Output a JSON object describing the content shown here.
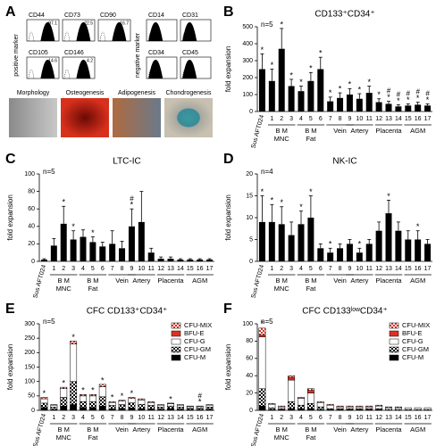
{
  "panel_a": {
    "letter": "A",
    "positive_label": "positive marker",
    "negative_label": "negative marker",
    "positive_markers": [
      {
        "name": "CD44",
        "value": "97.1"
      },
      {
        "name": "CD73",
        "value": "22.5"
      },
      {
        "name": "CD90",
        "value": "16.7"
      },
      {
        "name": "CD105",
        "value": "14.6"
      },
      {
        "name": "CD146",
        "value": "4.2"
      }
    ],
    "negative_markers": [
      "CD14",
      "CD31",
      "CD34",
      "CD45"
    ],
    "images": [
      "Morphology",
      "Osteogenesis",
      "Adipogenesis",
      "Chondrogenesis"
    ]
  },
  "chart_data": [
    {
      "type": "bar",
      "panel": "B",
      "title": "CD133⁺CD34⁺",
      "n": "n=5",
      "ylabel": "fold expansion",
      "color": "#000000",
      "categories": [
        "Sus AFT024",
        "1",
        "2",
        "3",
        "4",
        "5",
        "6",
        "7",
        "8",
        "9",
        "10",
        "11",
        "12",
        "13",
        "14",
        "15",
        "16",
        "17"
      ],
      "group_labels": [
        null,
        null,
        "B M",
        null,
        null,
        "B M",
        null,
        null,
        "Vein",
        null,
        "Artery",
        null,
        null,
        "Placenta",
        null,
        null,
        "AGM",
        null
      ],
      "group_sublabels": [
        null,
        null,
        "MNC",
        null,
        null,
        "Fat",
        null,
        null,
        null,
        null,
        null,
        null,
        null,
        null,
        null,
        null,
        null,
        null
      ],
      "values": [
        250,
        180,
        370,
        150,
        120,
        180,
        250,
        60,
        80,
        100,
        75,
        110,
        55,
        45,
        30,
        35,
        40,
        35
      ],
      "errors": [
        90,
        70,
        120,
        40,
        30,
        50,
        70,
        25,
        30,
        35,
        30,
        40,
        20,
        15,
        10,
        10,
        15,
        10
      ],
      "sig": [
        "*",
        "*",
        "*",
        "*",
        "*",
        "*",
        "*",
        "*",
        "*",
        "*",
        "*",
        "*",
        "*",
        "*",
        "*",
        "*",
        "*",
        "*"
      ],
      "sig_hash": [
        null,
        null,
        null,
        null,
        null,
        null,
        null,
        null,
        null,
        null,
        null,
        null,
        null,
        "#",
        "#",
        "#",
        "#",
        "#"
      ],
      "ylim": [
        0,
        500
      ],
      "yticks": [
        0,
        100,
        200,
        300,
        400,
        500
      ]
    },
    {
      "type": "bar",
      "panel": "C",
      "title": "LTC-IC",
      "n": "n=5",
      "ylabel": "fold expansion",
      "color": "#000000",
      "categories": [
        "Sus AFT024",
        "1",
        "2",
        "3",
        "4",
        "5",
        "6",
        "7",
        "8",
        "9",
        "10",
        "11",
        "12",
        "13",
        "14",
        "15",
        "16",
        "17"
      ],
      "group_labels": [
        null,
        null,
        "B M",
        null,
        null,
        "B M",
        null,
        null,
        "Vein",
        null,
        "Artery",
        null,
        null,
        "Placenta",
        null,
        null,
        "AGM",
        null
      ],
      "group_sublabels": [
        null,
        null,
        "MNC",
        null,
        null,
        "Fat",
        null,
        null,
        null,
        null,
        null,
        null,
        null,
        null,
        null,
        null,
        null,
        null
      ],
      "values": [
        2,
        18,
        43,
        25,
        28,
        22,
        17,
        20,
        15,
        40,
        45,
        10,
        3,
        3,
        2,
        2,
        2,
        2
      ],
      "errors": [
        1,
        8,
        20,
        10,
        8,
        6,
        5,
        15,
        8,
        20,
        35,
        5,
        2,
        2,
        1,
        1,
        1,
        1
      ],
      "sig": [
        null,
        null,
        "*",
        "*",
        null,
        "*",
        null,
        null,
        null,
        "*",
        null,
        null,
        null,
        null,
        null,
        null,
        null,
        null
      ],
      "sig_hash": [
        null,
        null,
        null,
        null,
        null,
        null,
        null,
        null,
        null,
        "#",
        null,
        null,
        null,
        null,
        null,
        null,
        null,
        null
      ],
      "ylim": [
        0,
        100
      ],
      "yticks": [
        0,
        20,
        40,
        60,
        80,
        100
      ]
    },
    {
      "type": "bar",
      "panel": "D",
      "title": "NK-IC",
      "n": "n=4",
      "ylabel": "fold expansion",
      "color": "#000000",
      "categories": [
        "Sus AFT024",
        "1",
        "2",
        "3",
        "4",
        "5",
        "6",
        "7",
        "8",
        "9",
        "10",
        "11",
        "12",
        "13",
        "14",
        "15",
        "16",
        "17"
      ],
      "group_labels": [
        null,
        null,
        "B M",
        null,
        null,
        "B M",
        null,
        null,
        "Vein",
        null,
        "Artery",
        null,
        null,
        "Placenta",
        null,
        null,
        "AGM",
        null
      ],
      "group_sublabels": [
        null,
        null,
        "MNC",
        null,
        null,
        "Fat",
        null,
        null,
        null,
        null,
        null,
        null,
        null,
        null,
        null,
        null,
        null,
        null
      ],
      "values": [
        9,
        9,
        8.5,
        6,
        8.5,
        10,
        3,
        2,
        3,
        4,
        2,
        4,
        7,
        11,
        7,
        5,
        5,
        4
      ],
      "errors": [
        6,
        4,
        4,
        3,
        3,
        5,
        1,
        1,
        1,
        1,
        1,
        1,
        2,
        3,
        2,
        2,
        2,
        1
      ],
      "sig": [
        "*",
        "*",
        "*",
        null,
        "*",
        "*",
        null,
        "*",
        null,
        null,
        "*",
        null,
        null,
        "*",
        null,
        null,
        "*",
        null
      ],
      "sig_hash": [
        null,
        null,
        null,
        null,
        null,
        null,
        null,
        null,
        null,
        null,
        null,
        null,
        null,
        null,
        null,
        null,
        null,
        null
      ],
      "ylim": [
        0,
        20
      ],
      "yticks": [
        0,
        5,
        10,
        15,
        20
      ]
    },
    {
      "type": "stacked_bar",
      "panel": "E",
      "title": "CFC CD133⁺CD34⁺",
      "n": "n=5",
      "ylabel": "fold expansion",
      "categories": [
        "Sus AFT024",
        "1",
        "2",
        "3",
        "4",
        "5",
        "6",
        "7",
        "8",
        "9",
        "10",
        "11",
        "12",
        "13",
        "14",
        "15",
        "16",
        "17"
      ],
      "group_labels": [
        null,
        null,
        "B M",
        null,
        null,
        "B M",
        null,
        null,
        "Vein",
        null,
        "Artery",
        null,
        null,
        "Placenta",
        null,
        null,
        "AGM",
        null
      ],
      "group_sublabels": [
        null,
        null,
        "MNC",
        null,
        null,
        "Fat",
        null,
        null,
        null,
        null,
        null,
        null,
        null,
        null,
        null,
        null,
        null,
        null
      ],
      "series": [
        {
          "name": "CFU-MIX",
          "color": "#e03020",
          "pattern": "checker",
          "values": [
            5,
            2,
            5,
            10,
            5,
            5,
            8,
            3,
            3,
            4,
            4,
            3,
            2,
            2,
            2,
            1,
            1,
            2
          ]
        },
        {
          "name": "BFU-E",
          "color": "#e03020",
          "values": [
            0,
            0,
            0,
            0,
            0,
            0,
            0,
            0,
            0,
            0,
            0,
            0,
            0,
            0,
            0,
            0,
            0,
            0
          ]
        },
        {
          "name": "CFU-G",
          "color": "#ffffff",
          "values": [
            15,
            7,
            30,
            130,
            20,
            20,
            35,
            10,
            12,
            15,
            15,
            10,
            7,
            8,
            7,
            5,
            5,
            7
          ]
        },
        {
          "name": "CFU-GM",
          "color": "#000000",
          "pattern": "checker",
          "values": [
            15,
            8,
            30,
            80,
            20,
            20,
            32,
            12,
            13,
            18,
            15,
            12,
            7,
            9,
            7,
            6,
            6,
            7
          ]
        },
        {
          "name": "CFU-M",
          "color": "#000000",
          "values": [
            10,
            3,
            15,
            20,
            10,
            10,
            15,
            5,
            7,
            8,
            6,
            5,
            4,
            6,
            4,
            3,
            3,
            4
          ]
        }
      ],
      "sig": [
        "*",
        null,
        "*",
        "*",
        "*",
        "*",
        "*",
        "*",
        "*",
        "*",
        null,
        null,
        null,
        "*",
        null,
        null,
        "*",
        null
      ],
      "sig_hash": [
        null,
        null,
        null,
        null,
        null,
        null,
        null,
        null,
        null,
        null,
        null,
        null,
        null,
        null,
        null,
        null,
        "#",
        null
      ],
      "ylim": [
        0,
        300
      ],
      "yticks": [
        0,
        50,
        100,
        150,
        200,
        250,
        300
      ]
    },
    {
      "type": "stacked_bar",
      "panel": "F",
      "title": "CFC CD133ˡᵒʷCD34⁺",
      "n": "n=5",
      "ylabel": "fold expansion",
      "categories": [
        "Sus AFT024",
        "1",
        "2",
        "3",
        "4",
        "5",
        "6",
        "7",
        "8",
        "9",
        "10",
        "11",
        "12",
        "13",
        "14",
        "15",
        "16",
        "17"
      ],
      "group_labels": [
        null,
        null,
        "B M",
        null,
        null,
        "B M",
        null,
        null,
        "Vein",
        null,
        "Artery",
        null,
        null,
        "Placenta",
        null,
        null,
        "AGM",
        null
      ],
      "group_sublabels": [
        null,
        null,
        "MNC",
        null,
        null,
        "Fat",
        null,
        null,
        null,
        null,
        null,
        null,
        null,
        null,
        null,
        null,
        null,
        null
      ],
      "series": [
        {
          "name": "CFU-MIX",
          "color": "#e03020",
          "pattern": "checker",
          "values": [
            8,
            1,
            1,
            2,
            1,
            2,
            1,
            1,
            1,
            1,
            1,
            1,
            1,
            1,
            1,
            0,
            0,
            0
          ]
        },
        {
          "name": "BFU-E",
          "color": "#e03020",
          "values": [
            2,
            0,
            0,
            3,
            0,
            3,
            0,
            0,
            0,
            0,
            0,
            0,
            0,
            0,
            0,
            0,
            0,
            0
          ]
        },
        {
          "name": "CFU-G",
          "color": "#ffffff",
          "values": [
            60,
            4,
            2,
            25,
            8,
            12,
            5,
            4,
            2,
            2,
            2,
            2,
            3,
            2,
            2,
            2,
            2,
            2
          ]
        },
        {
          "name": "CFU-GM",
          "color": "#000000",
          "pattern": "checker",
          "values": [
            20,
            2,
            1,
            8,
            4,
            6,
            3,
            1,
            1,
            1,
            1,
            1,
            1,
            1,
            1,
            1,
            1,
            1
          ]
        },
        {
          "name": "CFU-M",
          "color": "#000000",
          "values": [
            5,
            1,
            1,
            2,
            2,
            2,
            1,
            1,
            1,
            1,
            1,
            1,
            1,
            0,
            0,
            0,
            0,
            0
          ]
        }
      ],
      "sig": [
        "*",
        null,
        null,
        null,
        null,
        null,
        null,
        null,
        null,
        null,
        null,
        null,
        null,
        null,
        null,
        null,
        null,
        null
      ],
      "sig_hash": [
        null,
        null,
        null,
        null,
        null,
        null,
        null,
        null,
        null,
        null,
        null,
        null,
        null,
        null,
        null,
        null,
        null,
        null
      ],
      "ylim": [
        0,
        100
      ],
      "yticks": [
        0,
        20,
        40,
        60,
        80,
        100
      ]
    }
  ]
}
